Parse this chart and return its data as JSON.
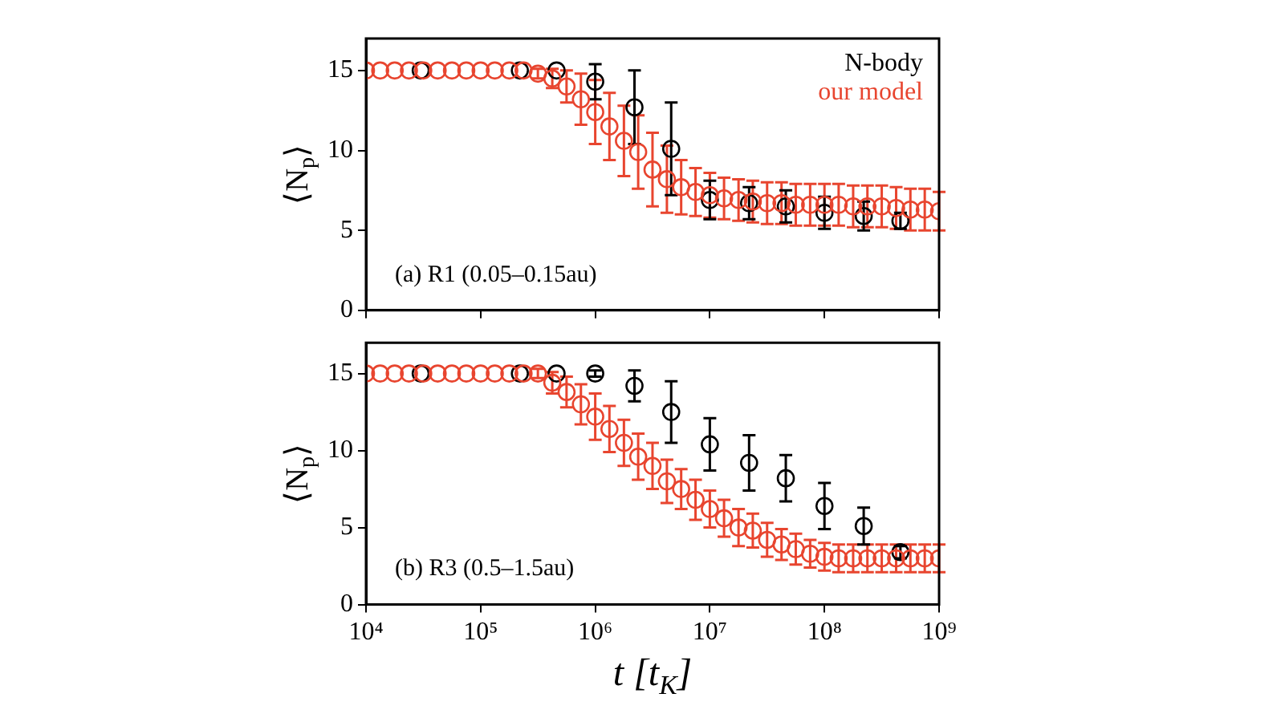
{
  "chart_data": [
    {
      "type": "scatter",
      "ylabel": "⟨N$_{p}$⟩",
      "legend": "top right",
      "marker": "circle",
      "log": "x",
      "tick_labels": "y",
      "xlim": [
        10000,
        1000000000
      ],
      "xticks": [
        {
          "value": 10000,
          "label": null
        },
        {
          "value": 100000,
          "label": null
        },
        {
          "value": 1000000,
          "label": null
        },
        {
          "value": 10000000,
          "label": null
        },
        {
          "value": 100000000,
          "label": null
        },
        {
          "value": 1000000000,
          "label": null
        }
      ],
      "ylim": [
        0,
        17
      ],
      "yticks": [
        0,
        5,
        10,
        15
      ],
      "annotations": [
        "(a) R1 (0.05–0.15au)"
      ],
      "series": [
        {
          "name": "our model",
          "color": "#e8452f",
          "x": [
            10000,
            13300,
            17800,
            23700,
            31600,
            42200,
            56200,
            75000,
            100000,
            133000,
            178000,
            237000,
            316000,
            422000,
            562000,
            750000,
            1000000,
            1330000,
            1780000,
            2370000,
            3160000,
            4220000,
            5620000,
            7500000,
            10000000,
            13300000,
            17800000,
            23700000,
            31600000,
            42200000,
            56200000,
            75000000,
            100000000,
            133000000,
            178000000,
            237000000,
            316000000,
            422000000,
            562000000,
            750000000,
            1000000000
          ],
          "values": [
            15,
            15,
            15,
            15,
            15,
            15,
            15,
            15,
            15,
            15,
            15,
            15,
            14.8,
            14.5,
            14.0,
            13.2,
            12.4,
            11.5,
            10.6,
            9.9,
            8.8,
            8.2,
            7.7,
            7.4,
            7.2,
            7.0,
            6.9,
            6.8,
            6.7,
            6.7,
            6.6,
            6.6,
            6.6,
            6.6,
            6.5,
            6.5,
            6.5,
            6.4,
            6.3,
            6.3,
            6.2
          ],
          "errors": [
            null,
            null,
            null,
            null,
            null,
            null,
            null,
            null,
            null,
            null,
            null,
            null,
            0.3,
            0.6,
            1.0,
            1.6,
            2.0,
            2.1,
            2.2,
            2.3,
            2.3,
            2.1,
            1.7,
            1.5,
            1.4,
            1.3,
            1.3,
            1.3,
            1.3,
            1.3,
            1.3,
            1.3,
            1.3,
            1.3,
            1.3,
            1.3,
            1.3,
            1.3,
            1.3,
            1.3,
            1.2
          ]
        },
        {
          "name": "N-body",
          "color": "#000000",
          "x": [
            30000,
            220000,
            460000,
            1000000,
            2200000,
            4600000,
            10000000,
            22000000,
            46000000,
            100000000,
            220000000,
            460000000
          ],
          "values": [
            15,
            15,
            15,
            14.3,
            12.7,
            10.1,
            6.9,
            6.7,
            6.5,
            6.1,
            5.9,
            5.6
          ],
          "errors": [
            null,
            null,
            null,
            1.1,
            2.3,
            2.9,
            1.2,
            1.0,
            1.0,
            1.0,
            0.9,
            0.5
          ]
        }
      ]
    },
    {
      "type": "scatter",
      "ylabel": "⟨N$_{p}$⟩",
      "xlabel": "t [t$_{K}$]",
      "marker": "circle",
      "log": "x",
      "xlim": [
        10000,
        1000000000
      ],
      "xticks": [
        {
          "value": 10000,
          "label": "10⁴"
        },
        {
          "value": 100000,
          "label": "10⁵"
        },
        {
          "value": 1000000,
          "label": "10⁶"
        },
        {
          "value": 10000000,
          "label": "10⁷"
        },
        {
          "value": 100000000,
          "label": "10⁸"
        },
        {
          "value": 1000000000,
          "label": "10⁹"
        }
      ],
      "ylim": [
        0,
        17
      ],
      "yticks": [
        0,
        5,
        10,
        15
      ],
      "annotations": [
        "(b) R3 (0.5–1.5au)"
      ],
      "series": [
        {
          "color": "#e8452f",
          "x": [
            10000,
            13300,
            17800,
            23700,
            31600,
            42200,
            56200,
            75000,
            100000,
            133000,
            178000,
            237000,
            316000,
            422000,
            562000,
            750000,
            1000000,
            1330000,
            1780000,
            2370000,
            3160000,
            4220000,
            5620000,
            7500000,
            10000000,
            13300000,
            17800000,
            23700000,
            31600000,
            42200000,
            56200000,
            75000000,
            100000000,
            133000000,
            178000000,
            237000000,
            316000000,
            422000000,
            562000000,
            750000000,
            1000000000
          ],
          "values": [
            15,
            15,
            15,
            15,
            15,
            15,
            15,
            15,
            15,
            15,
            15,
            15,
            15,
            14.4,
            13.8,
            13.0,
            12.2,
            11.4,
            10.5,
            9.6,
            9.0,
            8.0,
            7.5,
            6.8,
            6.2,
            5.6,
            5.0,
            4.8,
            4.2,
            3.9,
            3.6,
            3.3,
            3.1,
            3.0,
            3.0,
            3.0,
            3.0,
            3.0,
            3.0,
            3.0,
            3.0
          ],
          "errors": [
            null,
            null,
            null,
            null,
            null,
            null,
            null,
            null,
            null,
            null,
            null,
            null,
            0.3,
            0.7,
            1.0,
            1.3,
            1.5,
            1.5,
            1.5,
            1.5,
            1.5,
            1.4,
            1.3,
            1.3,
            1.2,
            1.2,
            1.2,
            1.1,
            1.1,
            1.0,
            1.0,
            0.9,
            0.9,
            0.9,
            0.9,
            0.9,
            0.9,
            0.9,
            0.9,
            0.9,
            0.9
          ]
        },
        {
          "color": "#000000",
          "x": [
            30000,
            220000,
            460000,
            1000000,
            2200000,
            4600000,
            10000000,
            22000000,
            46000000,
            100000000,
            220000000,
            460000000
          ],
          "values": [
            15,
            15,
            15,
            15,
            14.2,
            12.5,
            10.4,
            9.2,
            8.2,
            6.4,
            5.1,
            3.4
          ],
          "errors": [
            null,
            null,
            null,
            0.2,
            1.0,
            2.0,
            1.7,
            1.8,
            1.5,
            1.5,
            1.2,
            0.4
          ]
        }
      ]
    }
  ]
}
